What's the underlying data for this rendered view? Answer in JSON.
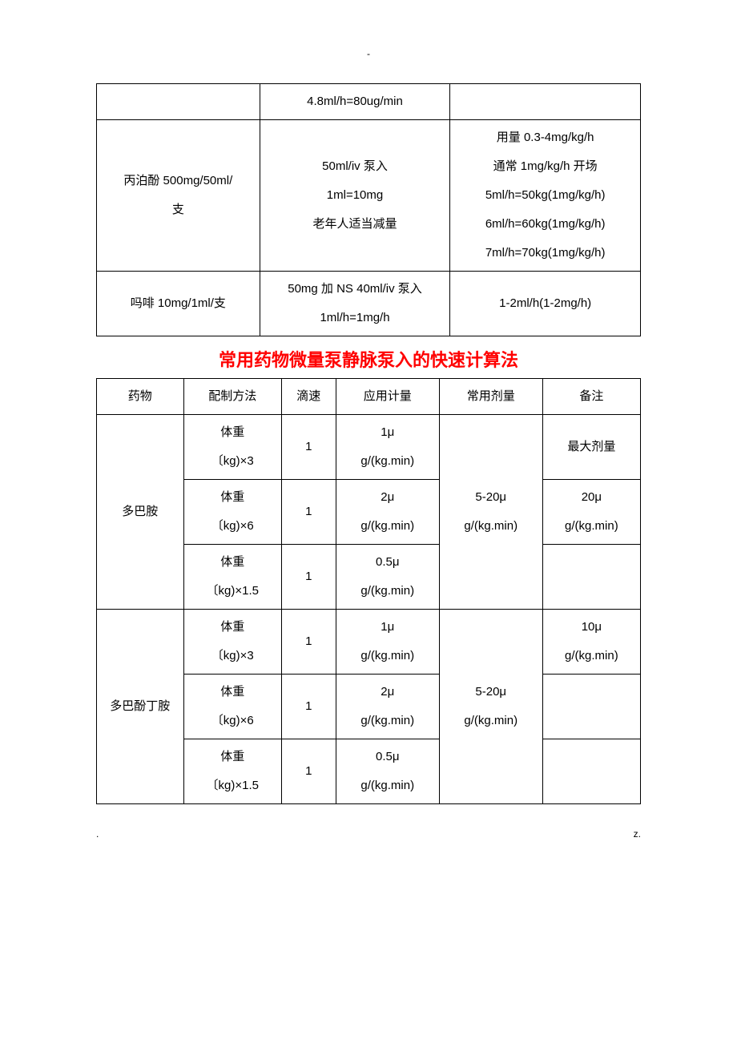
{
  "pageMarks": {
    "top": "-",
    "bottomLeft": ".",
    "bottomRight": "z."
  },
  "table1": {
    "rows": [
      {
        "c1": "",
        "c2": "4.8ml/h=80ug/min",
        "c3": ""
      },
      {
        "c1": "丙泊酚 500mg/50ml/\n支",
        "c2": "50ml/iv 泵入\n1ml=10mg\n老年人适当减量",
        "c3": "用量 0.3-4mg/kg/h\n通常 1mg/kg/h 开场\n5ml/h=50kg(1mg/kg/h)\n6ml/h=60kg(1mg/kg/h)\n7ml/h=70kg(1mg/kg/h)"
      },
      {
        "c1": "吗啡 10mg/1ml/支",
        "c2": "50mg 加 NS 40ml/iv 泵入\n1ml/h=1mg/h",
        "c3": "1-2ml/h(1-2mg/h)"
      }
    ]
  },
  "headingRed": "常用药物微量泵静脉泵入的快速计算法",
  "table2": {
    "headers": [
      "药物",
      "配制方法",
      "滴速",
      "应用计量",
      "常用剂量",
      "备注"
    ],
    "drugs": [
      {
        "name": "多巴胺",
        "rows": [
          {
            "prep": "体重\n〔kg)×3",
            "drip": "1",
            "dose": "1μ\ng/(kg.min)",
            "usual": "5-20μ\ng/(kg.min)",
            "note": "最大剂量"
          },
          {
            "prep": "体重\n〔kg)×6",
            "drip": "1",
            "dose": "2μ\ng/(kg.min)",
            "usual": "",
            "note": "20μ\ng/(kg.min)"
          },
          {
            "prep": "体重\n〔kg)×1.5",
            "drip": "1",
            "dose": "0.5μ\ng/(kg.min)",
            "usual": "",
            "note": ""
          }
        ]
      },
      {
        "name": "多巴酚丁胺",
        "rows": [
          {
            "prep": "体重\n〔kg)×3",
            "drip": "1",
            "dose": "1μ\ng/(kg.min)",
            "usual": "5-20μ\ng/(kg.min)",
            "note": "10μ\ng/(kg.min)"
          },
          {
            "prep": "体重\n〔kg)×6",
            "drip": "1",
            "dose": "2μ\ng/(kg.min)",
            "usual": "",
            "note": ""
          },
          {
            "prep": "体重\n〔kg)×1.5",
            "drip": "1",
            "dose": "0.5μ\ng/(kg.min)",
            "usual": "",
            "note": ""
          }
        ]
      }
    ]
  }
}
